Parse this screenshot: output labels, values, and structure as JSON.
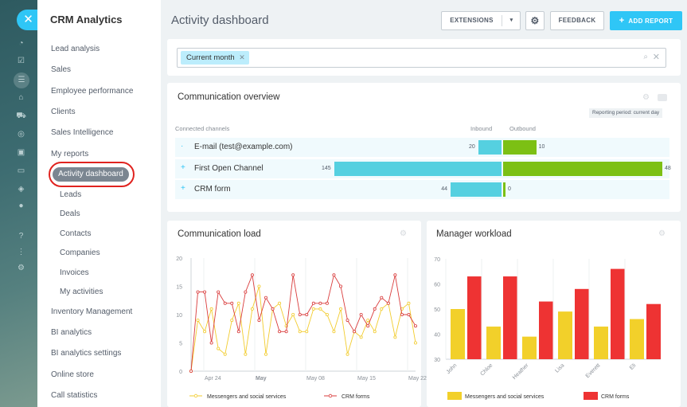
{
  "sidebar": {
    "title": "CRM Analytics",
    "items": [
      {
        "label": "Lead analysis"
      },
      {
        "label": "Sales"
      },
      {
        "label": "Employee performance"
      },
      {
        "label": "Clients"
      },
      {
        "label": "Sales Intelligence"
      },
      {
        "label": "My reports"
      },
      {
        "label": "Activity dashboard"
      },
      {
        "label": "Leads"
      },
      {
        "label": "Deals"
      },
      {
        "label": "Contacts"
      },
      {
        "label": "Companies"
      },
      {
        "label": "Invoices"
      },
      {
        "label": "My activities"
      },
      {
        "label": "Inventory Management"
      },
      {
        "label": "BI analytics"
      },
      {
        "label": "BI analytics settings"
      },
      {
        "label": "Online store"
      },
      {
        "label": "Call statistics"
      }
    ]
  },
  "header": {
    "title": "Activity dashboard",
    "extensions_label": "EXTENSIONS",
    "feedback_label": "FEEDBACK",
    "add_report_label": "ADD REPORT"
  },
  "filter": {
    "tag": "Current month"
  },
  "overview": {
    "title": "Communication overview",
    "period": "Reporting period: current day",
    "columns": {
      "channels": "Connected channels",
      "inbound": "Inbound",
      "outbound": "Outbound"
    },
    "rows": [
      {
        "name": "E-mail (test@example.com)",
        "inbound": 20,
        "outbound": 10
      },
      {
        "name": "First Open Channel",
        "inbound": 145,
        "outbound": 48
      },
      {
        "name": "CRM form",
        "inbound": 44,
        "outbound": 0
      }
    ],
    "colors": {
      "inbound": "#55d0e0",
      "outbound": "#7cc014"
    }
  },
  "load": {
    "title": "Communication load"
  },
  "workload": {
    "title": "Manager workload"
  },
  "chart_data": [
    {
      "type": "line",
      "title": "Communication load",
      "ylim": [
        0,
        20
      ],
      "yticks": [
        0,
        5,
        10,
        15,
        20
      ],
      "xticks": [
        "Apr 24",
        "May",
        "May 08",
        "May 15",
        "May 22"
      ],
      "n_points": 34,
      "series": [
        {
          "name": "Messengers and social services",
          "color": "#f2cc2e",
          "values": [
            0,
            9,
            7,
            11,
            4,
            3,
            9,
            12,
            3,
            11,
            15,
            3,
            11,
            12,
            8,
            10,
            7,
            7,
            11,
            11,
            10,
            7,
            11,
            3,
            7,
            6,
            9,
            7,
            11,
            12,
            6,
            11,
            12,
            5
          ]
        },
        {
          "name": "CRM forms",
          "color": "#d93b3b",
          "values": [
            0,
            14,
            14,
            5,
            14,
            12,
            12,
            7,
            14,
            17,
            9,
            13,
            11,
            7,
            7,
            17,
            10,
            10,
            12,
            12,
            12,
            17,
            15,
            9,
            7,
            10,
            8,
            11,
            13,
            12,
            17,
            10,
            10,
            8
          ]
        }
      ],
      "legend": "bottom"
    },
    {
      "type": "bar",
      "title": "Manager workload",
      "ylim": [
        30,
        70
      ],
      "yticks": [
        30,
        40,
        50,
        60,
        70
      ],
      "categories": [
        "John",
        "Chloe",
        "Heather",
        "Lisa",
        "Everett",
        "Eli"
      ],
      "series": [
        {
          "name": "Messengers and social services",
          "color": "#f2d02a",
          "values": [
            50,
            43,
            39,
            49,
            43,
            46
          ]
        },
        {
          "name": "CRM forms",
          "color": "#ee3333",
          "values": [
            63,
            63,
            53,
            58,
            66,
            52
          ]
        }
      ],
      "legend": "bottom"
    }
  ]
}
